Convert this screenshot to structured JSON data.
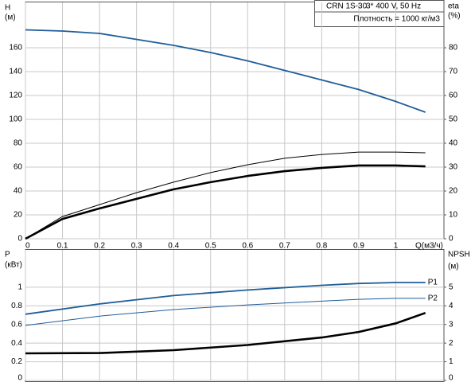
{
  "chart_data": [
    {
      "type": "line",
      "info": [
        "CRN 1S-30",
        "3* 400 V, 50 Hz",
        "Плотность = 1000 кг/м3"
      ],
      "ylabel": [
        "H",
        "(м)"
      ],
      "y2label": [
        "eta",
        "(%)"
      ],
      "xlabel": "Q(м3/ч)",
      "x": [
        0,
        0.1,
        0.2,
        0.3,
        0.4,
        0.5,
        0.6,
        0.7,
        0.8,
        0.9,
        1,
        1.08
      ],
      "xlim": [
        0,
        1.13
      ],
      "xticks": [
        0,
        0.1,
        0.2,
        0.3,
        0.4,
        0.5,
        0.6,
        0.7,
        0.8,
        0.9,
        1
      ],
      "ylim": [
        0,
        198
      ],
      "yticks": [
        0,
        20,
        40,
        60,
        80,
        100,
        120,
        140,
        160
      ],
      "y2lim": [
        0,
        99
      ],
      "y2ticks": [
        0,
        10,
        20,
        30,
        40,
        50,
        60,
        70,
        80
      ],
      "grid": true,
      "series": [
        {
          "color": "#1f5d99",
          "values": [
            175,
            174,
            172,
            167,
            162,
            156,
            149,
            141,
            133,
            125,
            115,
            106
          ]
        },
        {
          "color": "#000000",
          "axis": "y2",
          "values": [
            0,
            9.3,
            14.3,
            19.3,
            23.7,
            27.7,
            31,
            33.7,
            35.3,
            36.3,
            36.3,
            36
          ]
        },
        {
          "color": "#000000",
          "axis": "y2",
          "values": [
            0,
            8.3,
            12.7,
            16.7,
            20.7,
            23.7,
            26.3,
            28.3,
            29.7,
            30.7,
            30.7,
            30.3
          ]
        }
      ]
    },
    {
      "type": "line",
      "ylabel": [
        "P",
        "(кВт)"
      ],
      "y2label": [
        "NPSH",
        "(м)"
      ],
      "x": [
        0,
        0.2,
        0.4,
        0.6,
        0.8,
        0.9,
        1,
        1.08
      ],
      "xlim": [
        0,
        1.13
      ],
      "ylim": [
        0,
        1.4
      ],
      "yticks": [
        0,
        0.2,
        0.4,
        0.6,
        0.8,
        1
      ],
      "y2lim": [
        0,
        7
      ],
      "y2ticks": [
        0,
        1,
        2,
        3,
        4,
        5
      ],
      "grid": true,
      "series": [
        {
          "name": "P1",
          "color": "#1f5d99",
          "values": [
            0.71,
            0.82,
            0.91,
            0.97,
            1.02,
            1.04,
            1.05,
            1.05
          ]
        },
        {
          "name": "P2",
          "color": "#1f5d99",
          "values": [
            0.59,
            0.69,
            0.76,
            0.81,
            0.85,
            0.87,
            0.88,
            0.88
          ]
        },
        {
          "color": "#000000",
          "axis": "y2",
          "values": [
            1.45,
            1.47,
            1.62,
            1.9,
            2.3,
            2.6,
            3.06,
            3.62
          ]
        }
      ]
    }
  ]
}
